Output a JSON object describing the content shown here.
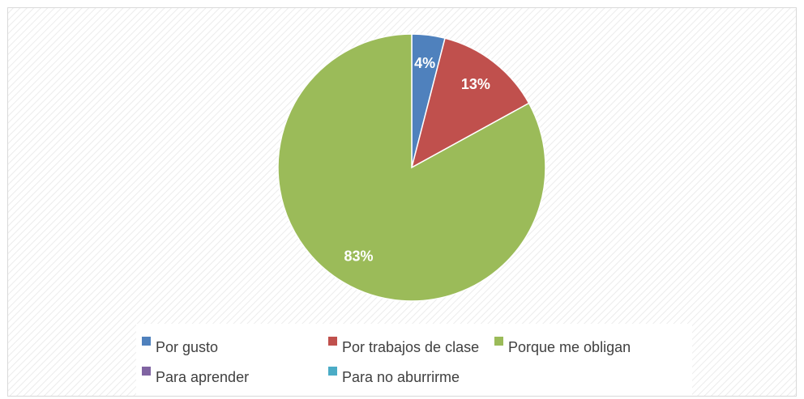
{
  "chart_data": {
    "type": "pie",
    "categories": [
      "Por gusto",
      "Por trabajos de clase",
      "Porque me obligan",
      "Para aprender",
      "Para no aburrirme"
    ],
    "values": [
      4,
      13,
      83,
      0,
      0
    ],
    "value_labels": [
      "4%",
      "13%",
      "83%",
      null,
      null
    ],
    "colors": [
      "#4f81bd",
      "#c0504d",
      "#9bbb59",
      "#8064a2",
      "#4bacc6"
    ],
    "legend": "bottom"
  }
}
